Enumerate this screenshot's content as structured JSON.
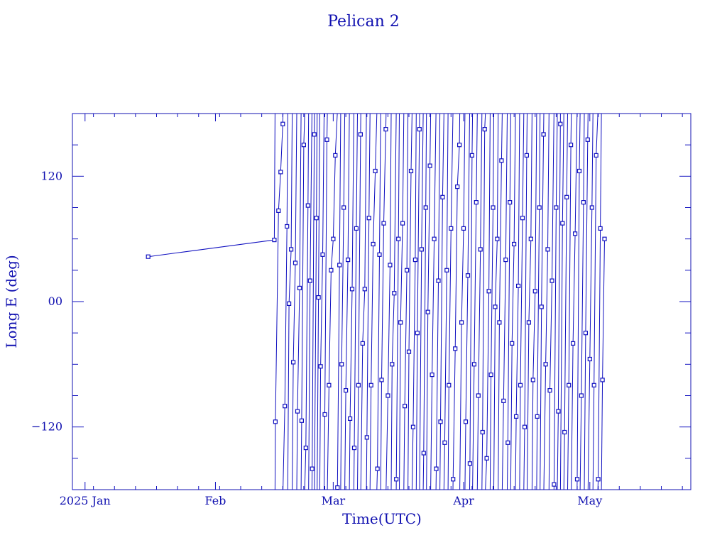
{
  "chart_data": {
    "type": "scatter",
    "title": "Pelican 2",
    "xlabel": "Time(UTC)",
    "ylabel": "Long E (deg)",
    "xlim": [
      "2024-12-29",
      "2025-05-25"
    ],
    "ylim": [
      -180,
      180
    ],
    "x_tick_labels": [
      {
        "date": "2025-01-01",
        "label": "2025 Jan"
      },
      {
        "date": "2025-02-01",
        "label": "Feb"
      },
      {
        "date": "2025-03-01",
        "label": "Mar"
      },
      {
        "date": "2025-04-01",
        "label": "Apr"
      },
      {
        "date": "2025-05-01",
        "label": "May"
      }
    ],
    "y_tick_labels": [
      {
        "value": 120,
        "label": "120"
      },
      {
        "value": 0,
        "label": "00"
      },
      {
        "value": -120,
        "label": "−120"
      }
    ],
    "grid": false,
    "line_color": "#1010c0",
    "points": [
      [
        "2025-01-16T00:00",
        43
      ],
      [
        "2025-02-15T00:00",
        59
      ],
      [
        "2025-02-15T06:00",
        -115
      ],
      [
        "2025-02-16T00:00",
        87
      ],
      [
        "2025-02-16T12:00",
        124
      ],
      [
        "2025-02-17T00:00",
        170
      ],
      [
        "2025-02-17T12:00",
        -100
      ],
      [
        "2025-02-18T00:00",
        72
      ],
      [
        "2025-02-18T12:00",
        -2
      ],
      [
        "2025-02-19T00:00",
        50
      ],
      [
        "2025-02-19T12:00",
        -58
      ],
      [
        "2025-02-20T00:00",
        37
      ],
      [
        "2025-02-20T12:00",
        -105
      ],
      [
        "2025-02-21T00:00",
        13
      ],
      [
        "2025-02-21T12:00",
        -114
      ],
      [
        "2025-02-22T00:00",
        150
      ],
      [
        "2025-02-22T12:00",
        -140
      ],
      [
        "2025-02-23T00:00",
        92
      ],
      [
        "2025-02-23T12:00",
        20
      ],
      [
        "2025-02-24T00:00",
        -160
      ],
      [
        "2025-02-24T12:00",
        160
      ],
      [
        "2025-02-25T00:00",
        80
      ],
      [
        "2025-02-25T12:00",
        4
      ],
      [
        "2025-02-26T00:00",
        -62
      ],
      [
        "2025-02-26T12:00",
        45
      ],
      [
        "2025-02-27T00:00",
        -108
      ],
      [
        "2025-02-27T12:00",
        155
      ],
      [
        "2025-02-28T00:00",
        -80
      ],
      [
        "2025-02-28T12:00",
        30
      ],
      [
        "2025-03-01T00:00",
        60
      ],
      [
        "2025-03-01T12:00",
        140
      ],
      [
        "2025-03-02T00:00",
        -178
      ],
      [
        "2025-03-02T12:00",
        35
      ],
      [
        "2025-03-03T00:00",
        -60
      ],
      [
        "2025-03-03T12:00",
        90
      ],
      [
        "2025-03-04T00:00",
        -85
      ],
      [
        "2025-03-04T12:00",
        40
      ],
      [
        "2025-03-05T00:00",
        -112
      ],
      [
        "2025-03-05T12:00",
        12
      ],
      [
        "2025-03-06T00:00",
        -140
      ],
      [
        "2025-03-06T12:00",
        70
      ],
      [
        "2025-03-07T00:00",
        -80
      ],
      [
        "2025-03-07T12:00",
        160
      ],
      [
        "2025-03-08T00:00",
        -40
      ],
      [
        "2025-03-08T12:00",
        12
      ],
      [
        "2025-03-09T00:00",
        -130
      ],
      [
        "2025-03-09T12:00",
        80
      ],
      [
        "2025-03-10T00:00",
        -80
      ],
      [
        "2025-03-10T12:00",
        55
      ],
      [
        "2025-03-11T00:00",
        125
      ],
      [
        "2025-03-11T12:00",
        -160
      ],
      [
        "2025-03-12T00:00",
        45
      ],
      [
        "2025-03-12T12:00",
        -75
      ],
      [
        "2025-03-13T00:00",
        75
      ],
      [
        "2025-03-13T12:00",
        165
      ],
      [
        "2025-03-14T00:00",
        -90
      ],
      [
        "2025-03-14T12:00",
        35
      ],
      [
        "2025-03-15T00:00",
        -60
      ],
      [
        "2025-03-15T12:00",
        8
      ],
      [
        "2025-03-16T00:00",
        -170
      ],
      [
        "2025-03-16T12:00",
        60
      ],
      [
        "2025-03-17T00:00",
        -20
      ],
      [
        "2025-03-17T12:00",
        75
      ],
      [
        "2025-03-18T00:00",
        -100
      ],
      [
        "2025-03-18T12:00",
        30
      ],
      [
        "2025-03-19T00:00",
        -48
      ],
      [
        "2025-03-19T12:00",
        125
      ],
      [
        "2025-03-20T00:00",
        -120
      ],
      [
        "2025-03-20T12:00",
        40
      ],
      [
        "2025-03-21T00:00",
        -30
      ],
      [
        "2025-03-21T12:00",
        165
      ],
      [
        "2025-03-22T00:00",
        50
      ],
      [
        "2025-03-22T12:00",
        -145
      ],
      [
        "2025-03-23T00:00",
        90
      ],
      [
        "2025-03-23T12:00",
        -10
      ],
      [
        "2025-03-24T00:00",
        130
      ],
      [
        "2025-03-24T12:00",
        -70
      ],
      [
        "2025-03-25T00:00",
        60
      ],
      [
        "2025-03-25T12:00",
        -160
      ],
      [
        "2025-03-26T00:00",
        20
      ],
      [
        "2025-03-26T12:00",
        -115
      ],
      [
        "2025-03-27T00:00",
        100
      ],
      [
        "2025-03-27T12:00",
        -135
      ],
      [
        "2025-03-28T00:00",
        30
      ],
      [
        "2025-03-28T12:00",
        -80
      ],
      [
        "2025-03-29T00:00",
        70
      ],
      [
        "2025-03-29T12:00",
        -170
      ],
      [
        "2025-03-30T00:00",
        -45
      ],
      [
        "2025-03-30T12:00",
        110
      ],
      [
        "2025-03-31T00:00",
        150
      ],
      [
        "2025-03-31T12:00",
        -20
      ],
      [
        "2025-04-01T00:00",
        70
      ],
      [
        "2025-04-01T12:00",
        -115
      ],
      [
        "2025-04-02T00:00",
        25
      ],
      [
        "2025-04-02T12:00",
        -155
      ],
      [
        "2025-04-03T00:00",
        140
      ],
      [
        "2025-04-03T12:00",
        -60
      ],
      [
        "2025-04-04T00:00",
        95
      ],
      [
        "2025-04-04T12:00",
        -90
      ],
      [
        "2025-04-05T00:00",
        50
      ],
      [
        "2025-04-05T12:00",
        -125
      ],
      [
        "2025-04-06T00:00",
        165
      ],
      [
        "2025-04-06T12:00",
        -150
      ],
      [
        "2025-04-07T00:00",
        10
      ],
      [
        "2025-04-07T12:00",
        -70
      ],
      [
        "2025-04-08T00:00",
        90
      ],
      [
        "2025-04-08T12:00",
        -5
      ],
      [
        "2025-04-09T00:00",
        60
      ],
      [
        "2025-04-09T12:00",
        -20
      ],
      [
        "2025-04-10T00:00",
        135
      ],
      [
        "2025-04-10T12:00",
        -95
      ],
      [
        "2025-04-11T00:00",
        40
      ],
      [
        "2025-04-11T12:00",
        -135
      ],
      [
        "2025-04-12T00:00",
        95
      ],
      [
        "2025-04-12T12:00",
        -40
      ],
      [
        "2025-04-13T00:00",
        55
      ],
      [
        "2025-04-13T12:00",
        -110
      ],
      [
        "2025-04-14T00:00",
        15
      ],
      [
        "2025-04-14T12:00",
        -80
      ],
      [
        "2025-04-15T00:00",
        80
      ],
      [
        "2025-04-15T12:00",
        -120
      ],
      [
        "2025-04-16T00:00",
        140
      ],
      [
        "2025-04-16T12:00",
        -20
      ],
      [
        "2025-04-17T00:00",
        60
      ],
      [
        "2025-04-17T12:00",
        -75
      ],
      [
        "2025-04-18T00:00",
        10
      ],
      [
        "2025-04-18T12:00",
        -110
      ],
      [
        "2025-04-19T00:00",
        90
      ],
      [
        "2025-04-19T12:00",
        -5
      ],
      [
        "2025-04-20T00:00",
        160
      ],
      [
        "2025-04-20T12:00",
        -60
      ],
      [
        "2025-04-21T00:00",
        50
      ],
      [
        "2025-04-21T12:00",
        -85
      ],
      [
        "2025-04-22T00:00",
        20
      ],
      [
        "2025-04-22T12:00",
        -175
      ],
      [
        "2025-04-23T00:00",
        90
      ],
      [
        "2025-04-23T12:00",
        -105
      ],
      [
        "2025-04-24T00:00",
        170
      ],
      [
        "2025-04-24T12:00",
        75
      ],
      [
        "2025-04-25T00:00",
        -125
      ],
      [
        "2025-04-25T12:00",
        100
      ],
      [
        "2025-04-26T00:00",
        -80
      ],
      [
        "2025-04-26T12:00",
        150
      ],
      [
        "2025-04-27T00:00",
        -40
      ],
      [
        "2025-04-27T12:00",
        65
      ],
      [
        "2025-04-28T00:00",
        -170
      ],
      [
        "2025-04-28T12:00",
        125
      ],
      [
        "2025-04-29T00:00",
        -90
      ],
      [
        "2025-04-29T12:00",
        95
      ],
      [
        "2025-04-30T00:00",
        -30
      ],
      [
        "2025-04-30T12:00",
        155
      ],
      [
        "2025-05-01T00:00",
        -55
      ],
      [
        "2025-05-01T12:00",
        90
      ],
      [
        "2025-05-02T00:00",
        -80
      ],
      [
        "2025-05-02T12:00",
        140
      ],
      [
        "2025-05-03T00:00",
        -170
      ],
      [
        "2025-05-03T12:00",
        70
      ],
      [
        "2025-05-04T00:00",
        -75
      ],
      [
        "2025-05-04T12:00",
        60
      ]
    ]
  }
}
